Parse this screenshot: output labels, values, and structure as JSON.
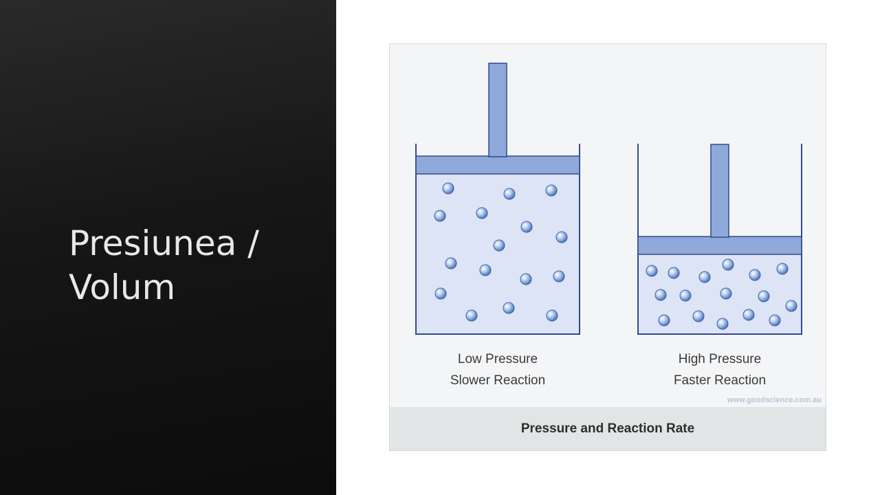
{
  "slide": {
    "title_line1": "Presiunea /",
    "title_line2": "Volum"
  },
  "figure": {
    "left_container": {
      "label_line1": "Low Pressure",
      "label_line2": "Slower Reaction"
    },
    "right_container": {
      "label_line1": "High Pressure",
      "label_line2": "Faster Reaction"
    },
    "watermark": "www.goodscience.com.au",
    "caption": "Pressure and Reaction Rate"
  },
  "colors": {
    "panel_background": "#111111",
    "title_text": "#e8e8e8",
    "piston": "#8fa9da",
    "gas_fill": "#dce4f5",
    "outline": "#2f4a8f",
    "molecule": "#7fa3d9"
  }
}
